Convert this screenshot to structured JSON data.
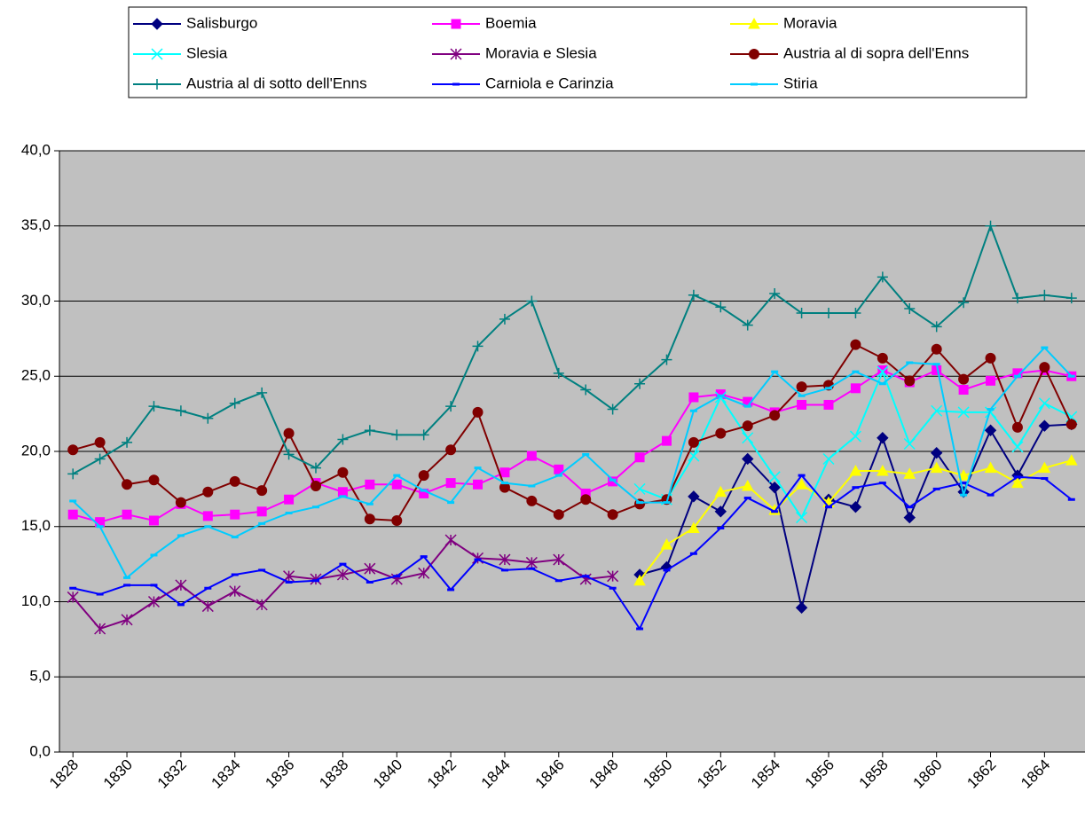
{
  "chart_data": {
    "type": "line",
    "x": [
      1828,
      1829,
      1830,
      1831,
      1832,
      1833,
      1834,
      1835,
      1836,
      1837,
      1838,
      1839,
      1840,
      1841,
      1842,
      1843,
      1844,
      1845,
      1846,
      1847,
      1848,
      1849,
      1850,
      1851,
      1852,
      1853,
      1854,
      1855,
      1856,
      1857,
      1858,
      1859,
      1860,
      1861,
      1862,
      1863,
      1864,
      1865
    ],
    "xlim": [
      1827.5,
      1865.5
    ],
    "xticks": [
      1828,
      1830,
      1832,
      1834,
      1836,
      1838,
      1840,
      1842,
      1844,
      1846,
      1848,
      1850,
      1852,
      1854,
      1856,
      1858,
      1860,
      1862,
      1864
    ],
    "ylim": [
      0,
      40
    ],
    "yticks": [
      {
        "value": 0,
        "label": "0,0"
      },
      {
        "value": 5,
        "label": "5,0"
      },
      {
        "value": 10,
        "label": "10,0"
      },
      {
        "value": 15,
        "label": "15,0"
      },
      {
        "value": 20,
        "label": "20,0"
      },
      {
        "value": 25,
        "label": "25,0"
      },
      {
        "value": 30,
        "label": "30,0"
      },
      {
        "value": 35,
        "label": "35,0"
      },
      {
        "value": 40,
        "label": "40,0"
      }
    ],
    "grid": true,
    "legend": "top",
    "series": [
      {
        "name": "Salisburgo",
        "color": "#000080",
        "marker": "diamond",
        "values": [
          null,
          null,
          null,
          null,
          null,
          null,
          null,
          null,
          null,
          null,
          null,
          null,
          null,
          null,
          null,
          null,
          null,
          null,
          null,
          null,
          null,
          11.8,
          12.3,
          17.0,
          16.0,
          19.5,
          17.6,
          9.6,
          16.8,
          16.3,
          20.9,
          15.6,
          19.9,
          17.3,
          21.4,
          18.4,
          21.7,
          21.8
        ]
      },
      {
        "name": "Boemia",
        "color": "#ff00ff",
        "marker": "square",
        "values": [
          15.8,
          15.3,
          15.8,
          15.4,
          16.5,
          15.7,
          15.8,
          16.0,
          16.8,
          17.9,
          17.3,
          17.8,
          17.8,
          17.2,
          17.9,
          17.8,
          18.6,
          19.7,
          18.8,
          17.2,
          18.0,
          19.6,
          20.7,
          23.6,
          23.8,
          23.3,
          22.6,
          23.1,
          23.1,
          24.2,
          25.4,
          24.6,
          25.4,
          24.1,
          24.7,
          25.2,
          25.4,
          25.0
        ]
      },
      {
        "name": "Moravia",
        "color": "#ffff00",
        "marker": "triangle",
        "values": [
          null,
          null,
          null,
          null,
          null,
          null,
          null,
          null,
          null,
          null,
          null,
          null,
          null,
          null,
          null,
          null,
          null,
          null,
          null,
          null,
          null,
          11.4,
          13.8,
          14.9,
          17.3,
          17.7,
          16.1,
          17.8,
          16.6,
          18.7,
          18.7,
          18.5,
          18.9,
          18.4,
          18.9,
          17.9,
          18.9,
          19.4
        ]
      },
      {
        "name": "Slesia",
        "color": "#00ffff",
        "marker": "x",
        "values": [
          null,
          null,
          null,
          null,
          null,
          null,
          null,
          null,
          null,
          null,
          null,
          null,
          null,
          null,
          null,
          null,
          null,
          null,
          null,
          null,
          null,
          17.5,
          16.8,
          19.7,
          23.6,
          20.9,
          18.3,
          15.6,
          19.5,
          21.0,
          25.3,
          20.5,
          22.7,
          22.6,
          22.6,
          20.3,
          23.2,
          22.3
        ]
      },
      {
        "name": "Moravia e Slesia",
        "color": "#800080",
        "marker": "star",
        "values": [
          10.3,
          8.2,
          8.8,
          10.0,
          11.1,
          9.7,
          10.7,
          9.8,
          11.7,
          11.5,
          11.8,
          12.2,
          11.5,
          11.9,
          14.1,
          12.9,
          12.8,
          12.6,
          12.8,
          11.5,
          11.7,
          null,
          null,
          null,
          null,
          null,
          null,
          null,
          null,
          null,
          null,
          null,
          null,
          null,
          null,
          null,
          null,
          null
        ]
      },
      {
        "name": "Austria al di sopra dell'Enns",
        "color": "#800000",
        "marker": "circle",
        "values": [
          20.1,
          20.6,
          17.8,
          18.1,
          16.6,
          17.3,
          18.0,
          17.4,
          21.2,
          17.7,
          18.6,
          15.5,
          15.4,
          18.4,
          20.1,
          22.6,
          17.6,
          16.7,
          15.8,
          16.8,
          15.8,
          16.5,
          16.8,
          20.6,
          21.2,
          21.7,
          22.4,
          24.3,
          24.4,
          27.1,
          26.2,
          24.7,
          26.8,
          24.8,
          26.2,
          21.6,
          25.6,
          21.8
        ]
      },
      {
        "name": "Austria al di sotto dell'Enns",
        "color": "#008080",
        "marker": "plus",
        "values": [
          18.5,
          19.5,
          20.6,
          23.0,
          22.7,
          22.2,
          23.2,
          23.9,
          19.8,
          18.9,
          20.8,
          21.4,
          21.1,
          21.1,
          23.0,
          27.0,
          28.8,
          30.0,
          25.2,
          24.1,
          22.8,
          24.5,
          26.1,
          30.4,
          29.6,
          28.4,
          30.5,
          29.2,
          29.2,
          29.2,
          31.6,
          29.5,
          28.3,
          29.9,
          35.0,
          30.2,
          30.4,
          30.2
        ]
      },
      {
        "name": "Carniola e Carinzia",
        "color": "#0000ff",
        "marker": "dash",
        "values": [
          10.9,
          10.5,
          11.1,
          11.1,
          9.8,
          10.9,
          11.8,
          12.1,
          11.3,
          11.4,
          12.5,
          11.3,
          11.7,
          13.0,
          10.8,
          12.8,
          12.1,
          12.2,
          11.4,
          11.7,
          10.9,
          8.2,
          12.1,
          13.2,
          14.9,
          16.9,
          16.0,
          18.4,
          16.3,
          17.6,
          17.9,
          16.3,
          17.5,
          17.9,
          17.1,
          18.3,
          18.2,
          16.8
        ]
      },
      {
        "name": "Stiria",
        "color": "#00ccff",
        "marker": "dash",
        "values": [
          16.7,
          15.0,
          11.6,
          13.1,
          14.4,
          15.0,
          14.3,
          15.2,
          15.9,
          16.3,
          17.0,
          16.5,
          18.4,
          17.4,
          16.6,
          18.9,
          17.9,
          17.7,
          18.4,
          19.8,
          18.1,
          16.6,
          16.6,
          22.7,
          23.7,
          23.0,
          25.3,
          23.7,
          24.2,
          25.3,
          24.5,
          25.9,
          25.8,
          17.1,
          22.8,
          25.0,
          26.9,
          25.0
        ]
      }
    ]
  }
}
